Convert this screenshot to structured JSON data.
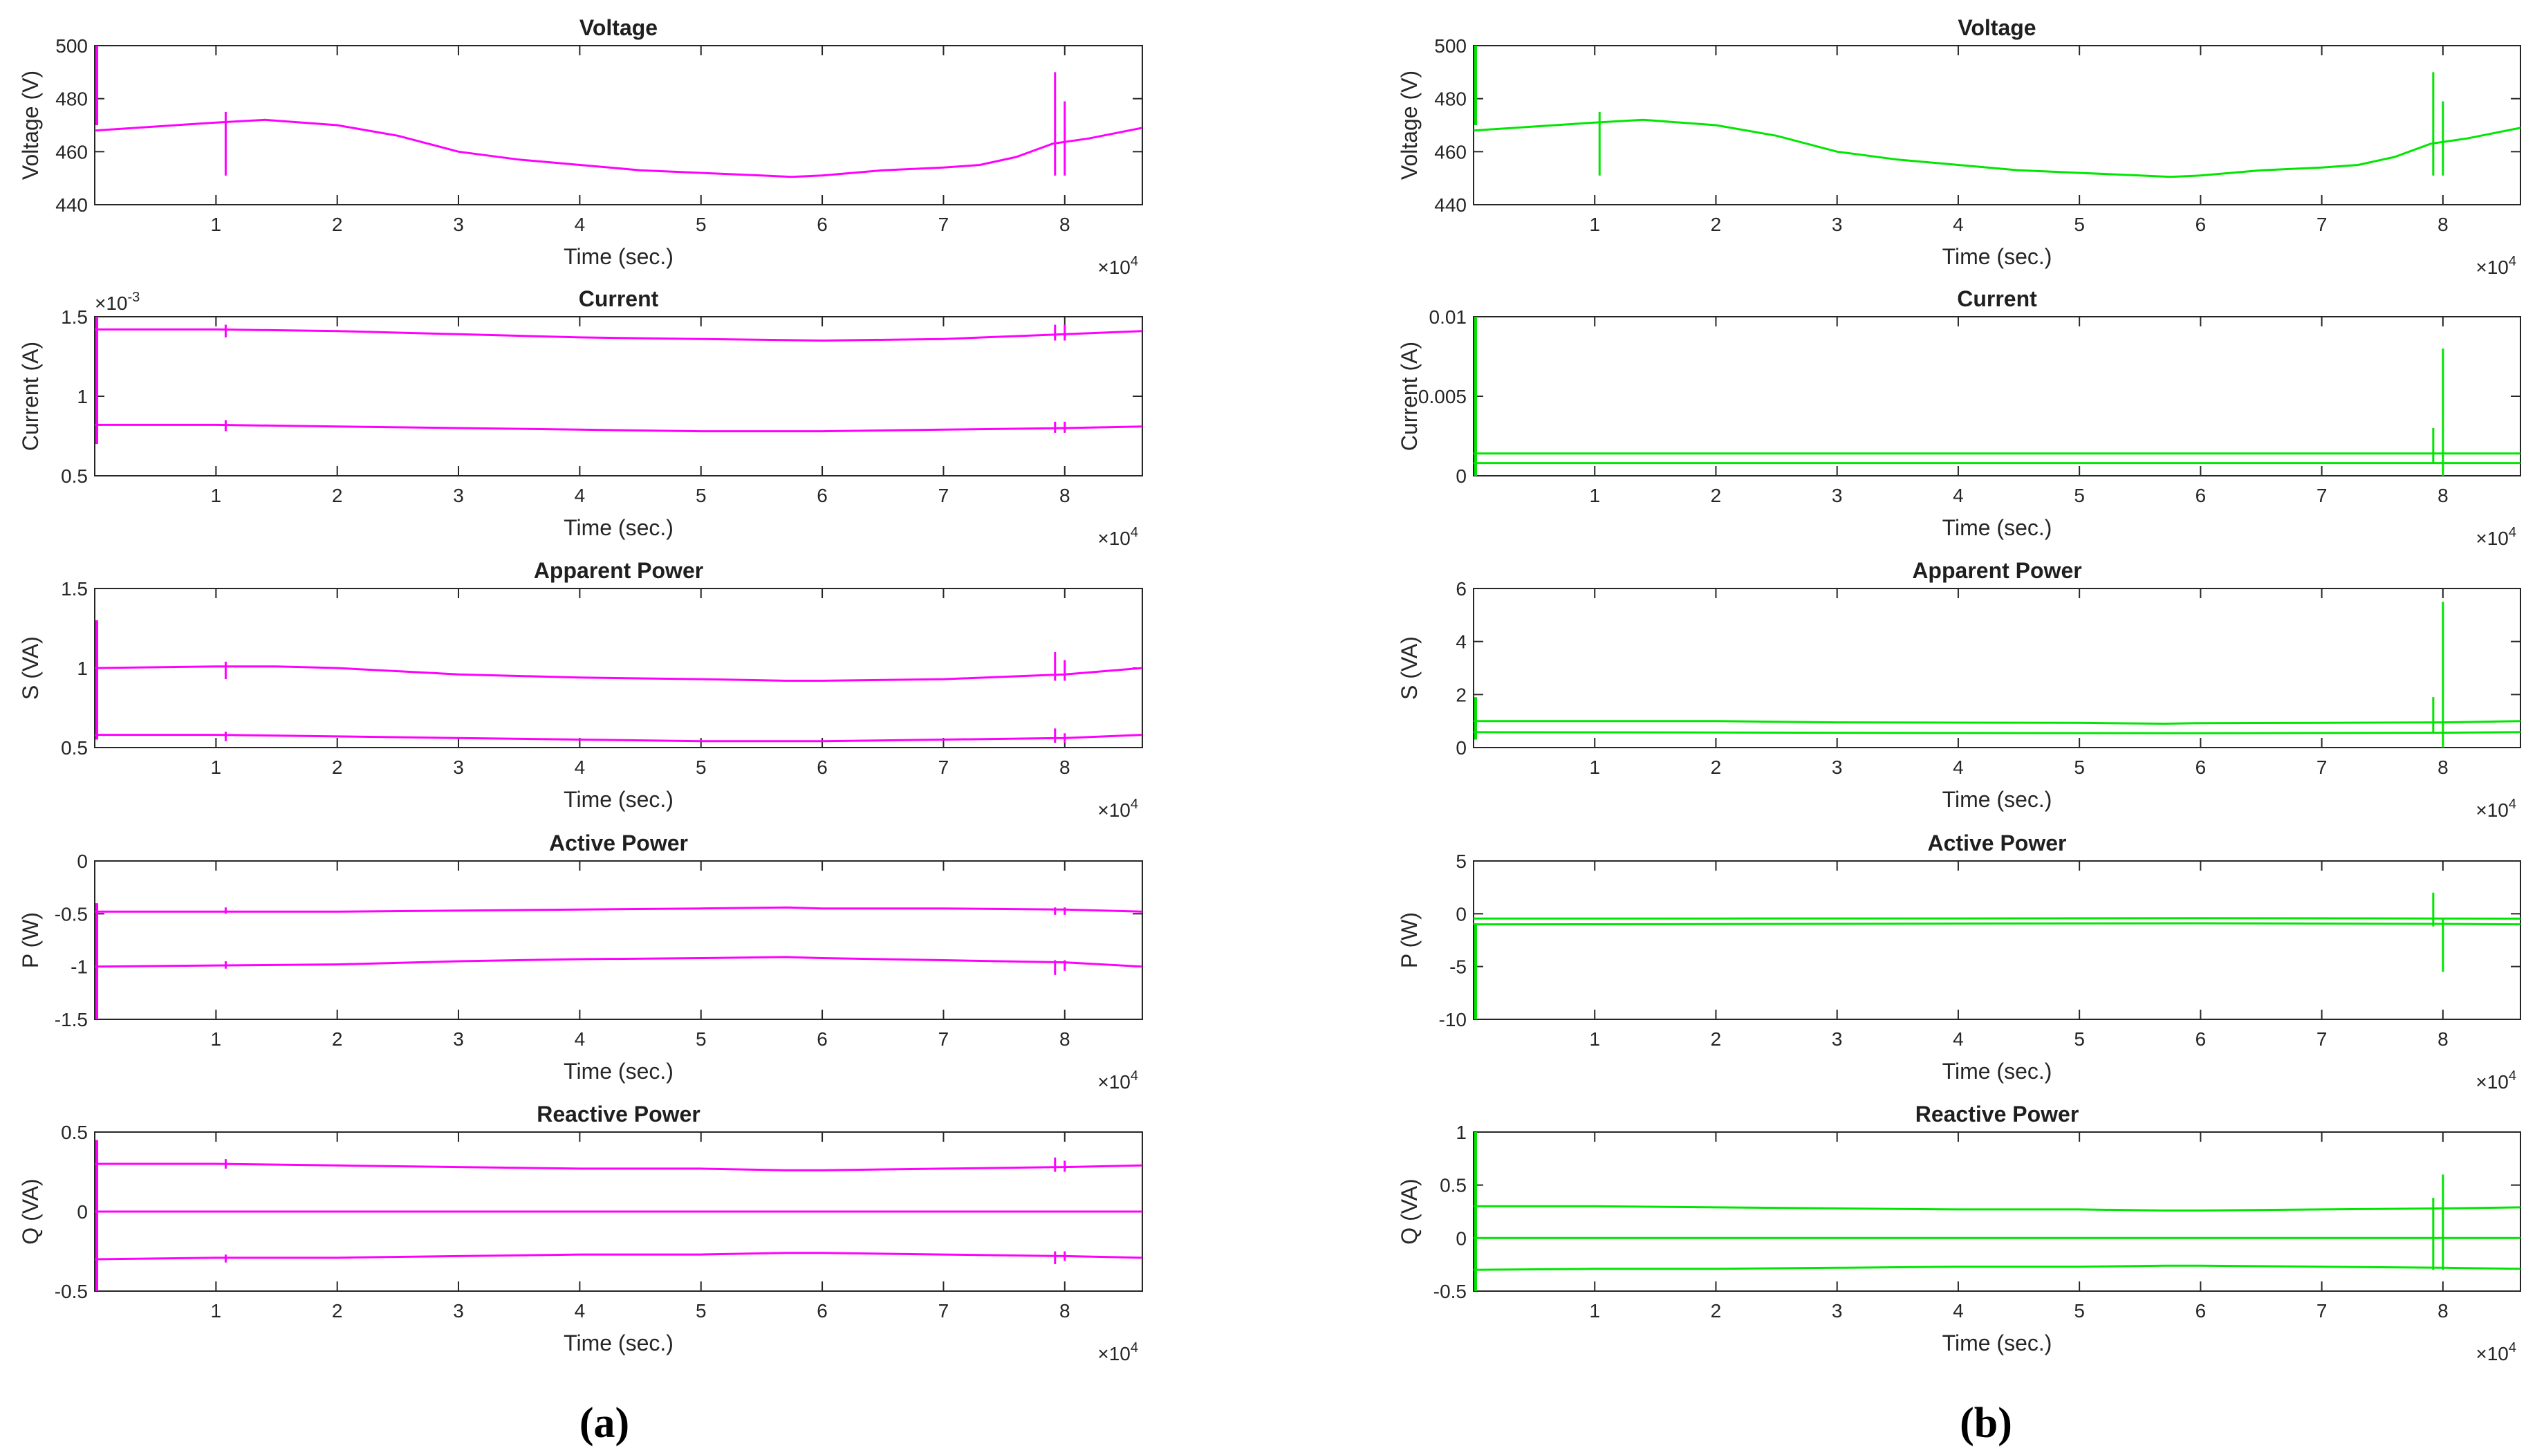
{
  "figure": {
    "captions": [
      {
        "id": "a",
        "label": "(a)"
      },
      {
        "id": "b",
        "label": "(b)"
      }
    ]
  },
  "chart_data": [
    {
      "type": "line",
      "column": "a",
      "row": 0,
      "color": "#ff00ff",
      "title": "Voltage",
      "xlabel": "Time (sec.)",
      "ylabel": "Voltage (V)",
      "xlim": [
        0,
        8.64
      ],
      "xticks": [
        1,
        2,
        3,
        4,
        5,
        6,
        7,
        8
      ],
      "x_multiplier": {
        "base": "×10",
        "exp": "4"
      },
      "ylim": [
        440,
        500
      ],
      "yticks": [
        440,
        460,
        480,
        500
      ],
      "ytick_labels": [
        "440",
        "460",
        "480",
        "500"
      ],
      "y_multiplier": null,
      "series": [
        {
          "name": "voltage",
          "x": [
            0,
            1.0,
            1.4,
            2.0,
            2.5,
            3.0,
            3.5,
            4.0,
            4.5,
            5.0,
            5.5,
            5.75,
            6.0,
            6.5,
            7.0,
            7.3,
            7.6,
            7.9,
            8.2,
            8.64
          ],
          "y": [
            468,
            471,
            472,
            470,
            466,
            460,
            457,
            455,
            453,
            452,
            451,
            450.5,
            451,
            453,
            454,
            455,
            458,
            463,
            465,
            469
          ]
        }
      ],
      "spikes": [
        {
          "x": 1.08,
          "y1": 451,
          "y2": 475
        },
        {
          "x": 7.92,
          "y1": 451,
          "y2": 490
        },
        {
          "x": 8.0,
          "y1": 451,
          "y2": 479
        }
      ],
      "left_edge_spike": {
        "y1": 470,
        "y2": 500
      }
    },
    {
      "type": "line",
      "column": "a",
      "row": 1,
      "color": "#ff00ff",
      "title": "Current",
      "xlabel": "Time (sec.)",
      "ylabel": "Current (A)",
      "xlim": [
        0,
        8.64
      ],
      "xticks": [
        1,
        2,
        3,
        4,
        5,
        6,
        7,
        8
      ],
      "x_multiplier": {
        "base": "×10",
        "exp": "4"
      },
      "ylim": [
        0.5,
        1.5
      ],
      "yticks": [
        0.5,
        1,
        1.5
      ],
      "ytick_labels": [
        "0.5",
        "1",
        "1.5"
      ],
      "y_multiplier": {
        "base": "×10",
        "exp": "-3"
      },
      "series": [
        {
          "name": "upper",
          "x": [
            0,
            1,
            2,
            3,
            4,
            5,
            6,
            7,
            8,
            8.64
          ],
          "y": [
            1.42,
            1.42,
            1.41,
            1.39,
            1.37,
            1.36,
            1.35,
            1.36,
            1.39,
            1.41
          ]
        },
        {
          "name": "lower",
          "x": [
            0,
            1,
            2,
            3,
            4,
            5,
            6,
            7,
            8,
            8.64
          ],
          "y": [
            0.82,
            0.82,
            0.81,
            0.8,
            0.79,
            0.78,
            0.78,
            0.79,
            0.8,
            0.81
          ]
        }
      ],
      "spikes": [
        {
          "x": 1.08,
          "y1": 1.37,
          "y2": 1.45
        },
        {
          "x": 1.08,
          "y1": 0.78,
          "y2": 0.85
        },
        {
          "x": 7.92,
          "y1": 1.35,
          "y2": 1.45
        },
        {
          "x": 8.0,
          "y1": 1.35,
          "y2": 1.45
        },
        {
          "x": 7.92,
          "y1": 0.77,
          "y2": 0.84
        },
        {
          "x": 8.0,
          "y1": 0.77,
          "y2": 0.84
        }
      ],
      "left_edge_spike": {
        "y1": 0.7,
        "y2": 1.5
      }
    },
    {
      "type": "line",
      "column": "a",
      "row": 2,
      "color": "#ff00ff",
      "title": "Apparent Power",
      "xlabel": "Time (sec.)",
      "ylabel": "S (VA)",
      "xlim": [
        0,
        8.64
      ],
      "xticks": [
        1,
        2,
        3,
        4,
        5,
        6,
        7,
        8
      ],
      "x_multiplier": {
        "base": "×10",
        "exp": "4"
      },
      "ylim": [
        0.5,
        1.5
      ],
      "yticks": [
        0.5,
        1,
        1.5
      ],
      "ytick_labels": [
        "0.5",
        "1",
        "1.5"
      ],
      "y_multiplier": null,
      "series": [
        {
          "name": "upper",
          "x": [
            0,
            1,
            1.5,
            2,
            3,
            4,
            5,
            5.7,
            6,
            7,
            8,
            8.64
          ],
          "y": [
            1.0,
            1.01,
            1.01,
            1.0,
            0.96,
            0.94,
            0.93,
            0.92,
            0.92,
            0.93,
            0.96,
            1.0
          ]
        },
        {
          "name": "lower",
          "x": [
            0,
            1,
            2,
            3,
            4,
            5,
            6,
            7,
            8,
            8.64
          ],
          "y": [
            0.58,
            0.58,
            0.57,
            0.56,
            0.55,
            0.54,
            0.54,
            0.55,
            0.56,
            0.58
          ]
        }
      ],
      "spikes": [
        {
          "x": 1.08,
          "y1": 0.93,
          "y2": 1.04
        },
        {
          "x": 1.08,
          "y1": 0.54,
          "y2": 0.6
        },
        {
          "x": 7.92,
          "y1": 0.92,
          "y2": 1.1
        },
        {
          "x": 8.0,
          "y1": 0.92,
          "y2": 1.05
        },
        {
          "x": 7.92,
          "y1": 0.53,
          "y2": 0.62
        },
        {
          "x": 8.0,
          "y1": 0.53,
          "y2": 0.59
        }
      ],
      "left_edge_spike": {
        "y1": 0.55,
        "y2": 1.3
      }
    },
    {
      "type": "line",
      "column": "a",
      "row": 3,
      "color": "#ff00ff",
      "title": "Active Power",
      "xlabel": "Time (sec.)",
      "ylabel": "P (W)",
      "xlim": [
        0,
        8.64
      ],
      "xticks": [
        1,
        2,
        3,
        4,
        5,
        6,
        7,
        8
      ],
      "x_multiplier": {
        "base": "×10",
        "exp": "4"
      },
      "ylim": [
        -1.5,
        0
      ],
      "yticks": [
        -1.5,
        -1,
        -0.5,
        0
      ],
      "ytick_labels": [
        "-1.5",
        "-1",
        "-0.5",
        "0"
      ],
      "y_multiplier": null,
      "series": [
        {
          "name": "upper",
          "x": [
            0,
            1,
            2,
            3,
            4,
            5,
            5.7,
            6,
            7,
            8,
            8.64
          ],
          "y": [
            -0.48,
            -0.48,
            -0.48,
            -0.47,
            -0.46,
            -0.45,
            -0.44,
            -0.45,
            -0.45,
            -0.46,
            -0.48
          ]
        },
        {
          "name": "lower",
          "x": [
            0,
            1,
            2,
            3,
            4,
            5,
            5.7,
            6,
            7,
            8,
            8.64
          ],
          "y": [
            -1.0,
            -0.99,
            -0.98,
            -0.95,
            -0.93,
            -0.92,
            -0.91,
            -0.92,
            -0.94,
            -0.96,
            -1.0
          ]
        }
      ],
      "spikes": [
        {
          "x": 1.08,
          "y1": -0.5,
          "y2": -0.44
        },
        {
          "x": 1.08,
          "y1": -1.02,
          "y2": -0.95
        },
        {
          "x": 7.92,
          "y1": -0.51,
          "y2": -0.44
        },
        {
          "x": 8.0,
          "y1": -0.51,
          "y2": -0.44
        },
        {
          "x": 7.92,
          "y1": -1.08,
          "y2": -0.94
        },
        {
          "x": 8.0,
          "y1": -1.04,
          "y2": -0.94
        }
      ],
      "left_edge_spike": {
        "y1": -1.5,
        "y2": -0.4
      }
    },
    {
      "type": "line",
      "column": "a",
      "row": 4,
      "color": "#ff00ff",
      "title": "Reactive Power",
      "xlabel": "Time (sec.)",
      "ylabel": "Q (VA)",
      "xlim": [
        0,
        8.64
      ],
      "xticks": [
        1,
        2,
        3,
        4,
        5,
        6,
        7,
        8
      ],
      "x_multiplier": {
        "base": "×10",
        "exp": "4"
      },
      "ylim": [
        -0.5,
        0.5
      ],
      "yticks": [
        -0.5,
        0,
        0.5
      ],
      "ytick_labels": [
        "-0.5",
        "0",
        "0.5"
      ],
      "y_multiplier": null,
      "series": [
        {
          "name": "upper",
          "x": [
            0,
            1,
            2,
            3,
            4,
            5,
            5.7,
            6,
            7,
            8,
            8.64
          ],
          "y": [
            0.3,
            0.3,
            0.29,
            0.28,
            0.27,
            0.27,
            0.26,
            0.26,
            0.27,
            0.28,
            0.29
          ]
        },
        {
          "name": "zero",
          "x": [
            0,
            8.64
          ],
          "y": [
            0,
            0
          ]
        },
        {
          "name": "lower",
          "x": [
            0,
            1,
            2,
            3,
            4,
            5,
            5.7,
            6,
            7,
            8,
            8.64
          ],
          "y": [
            -0.3,
            -0.29,
            -0.29,
            -0.28,
            -0.27,
            -0.27,
            -0.26,
            -0.26,
            -0.27,
            -0.28,
            -0.29
          ]
        }
      ],
      "spikes": [
        {
          "x": 1.08,
          "y1": 0.27,
          "y2": 0.33
        },
        {
          "x": 1.08,
          "y1": -0.32,
          "y2": -0.27
        },
        {
          "x": 7.92,
          "y1": 0.25,
          "y2": 0.34
        },
        {
          "x": 8.0,
          "y1": 0.25,
          "y2": 0.32
        },
        {
          "x": 7.92,
          "y1": -0.33,
          "y2": -0.25
        },
        {
          "x": 8.0,
          "y1": -0.31,
          "y2": -0.25
        }
      ],
      "left_edge_spike": {
        "y1": -0.5,
        "y2": 0.45
      }
    },
    {
      "type": "line",
      "column": "b",
      "row": 0,
      "color": "#00e600",
      "title": "Voltage",
      "xlabel": "Time (sec.)",
      "ylabel": "Voltage (V)",
      "xlim": [
        0,
        8.64
      ],
      "xticks": [
        1,
        2,
        3,
        4,
        5,
        6,
        7,
        8
      ],
      "x_multiplier": {
        "base": "×10",
        "exp": "4"
      },
      "ylim": [
        440,
        500
      ],
      "yticks": [
        440,
        460,
        480,
        500
      ],
      "ytick_labels": [
        "440",
        "460",
        "480",
        "500"
      ],
      "y_multiplier": null,
      "series": [
        {
          "name": "voltage",
          "x": [
            0,
            1.0,
            1.4,
            2.0,
            2.5,
            3.0,
            3.5,
            4.0,
            4.5,
            5.0,
            5.5,
            5.75,
            6.0,
            6.5,
            7.0,
            7.3,
            7.6,
            7.9,
            8.2,
            8.64
          ],
          "y": [
            468,
            471,
            472,
            470,
            466,
            460,
            457,
            455,
            453,
            452,
            451,
            450.5,
            451,
            453,
            454,
            455,
            458,
            463,
            465,
            469
          ]
        }
      ],
      "spikes": [
        {
          "x": 1.04,
          "y1": 451,
          "y2": 475
        },
        {
          "x": 7.92,
          "y1": 451,
          "y2": 490
        },
        {
          "x": 8.0,
          "y1": 451,
          "y2": 479
        }
      ],
      "left_edge_spike": {
        "y1": 470,
        "y2": 500
      }
    },
    {
      "type": "line",
      "column": "b",
      "row": 1,
      "color": "#00e600",
      "title": "Current",
      "xlabel": "Time (sec.)",
      "ylabel": "Current (A)",
      "xlim": [
        0,
        8.64
      ],
      "xticks": [
        1,
        2,
        3,
        4,
        5,
        6,
        7,
        8
      ],
      "x_multiplier": {
        "base": "×10",
        "exp": "4"
      },
      "ylim": [
        0,
        0.01
      ],
      "yticks": [
        0,
        0.005,
        0.01
      ],
      "ytick_labels": [
        "0",
        "0.005",
        "0.01"
      ],
      "y_multiplier": null,
      "series": [
        {
          "name": "upper",
          "x": [
            0,
            2,
            4,
            6,
            8,
            8.64
          ],
          "y": [
            0.0014,
            0.0014,
            0.0014,
            0.0014,
            0.0014,
            0.0014
          ]
        },
        {
          "name": "lower",
          "x": [
            0,
            2,
            4,
            6,
            8,
            8.64
          ],
          "y": [
            0.0008,
            0.0008,
            0.0008,
            0.0008,
            0.0008,
            0.0008
          ]
        }
      ],
      "spikes": [
        {
          "x": 7.92,
          "y1": 0.0008,
          "y2": 0.003
        },
        {
          "x": 8.0,
          "y1": 0.0,
          "y2": 0.008
        }
      ],
      "left_edge_spike": {
        "y1": 0.0,
        "y2": 0.01
      }
    },
    {
      "type": "line",
      "column": "b",
      "row": 2,
      "color": "#00e600",
      "title": "Apparent Power",
      "xlabel": "Time (sec.)",
      "ylabel": "S (VA)",
      "xlim": [
        0,
        8.64
      ],
      "xticks": [
        1,
        2,
        3,
        4,
        5,
        6,
        7,
        8
      ],
      "x_multiplier": {
        "base": "×10",
        "exp": "4"
      },
      "ylim": [
        0,
        6
      ],
      "yticks": [
        0,
        2,
        4,
        6
      ],
      "ytick_labels": [
        "0",
        "2",
        "4",
        "6"
      ],
      "y_multiplier": null,
      "series": [
        {
          "name": "upper",
          "x": [
            0,
            2,
            3,
            4,
            5,
            5.7,
            6,
            7,
            8,
            8.64
          ],
          "y": [
            1.0,
            1.0,
            0.95,
            0.94,
            0.93,
            0.9,
            0.92,
            0.93,
            0.95,
            1.0
          ]
        },
        {
          "name": "lower",
          "x": [
            0,
            2,
            4,
            6,
            8,
            8.64
          ],
          "y": [
            0.58,
            0.57,
            0.55,
            0.54,
            0.56,
            0.58
          ]
        }
      ],
      "spikes": [
        {
          "x": 7.92,
          "y1": 0.6,
          "y2": 1.9
        },
        {
          "x": 8.0,
          "y1": 0.0,
          "y2": 5.5
        }
      ],
      "left_edge_spike": {
        "y1": 0.3,
        "y2": 1.9
      }
    },
    {
      "type": "line",
      "column": "b",
      "row": 3,
      "color": "#00e600",
      "title": "Active Power",
      "xlabel": "Time (sec.)",
      "ylabel": "P (W)",
      "xlim": [
        0,
        8.64
      ],
      "xticks": [
        1,
        2,
        3,
        4,
        5,
        6,
        7,
        8
      ],
      "x_multiplier": {
        "base": "×10",
        "exp": "4"
      },
      "ylim": [
        -10,
        5
      ],
      "yticks": [
        -10,
        -5,
        0,
        5
      ],
      "ytick_labels": [
        "-10",
        "-5",
        "0",
        "5"
      ],
      "y_multiplier": null,
      "series": [
        {
          "name": "upper",
          "x": [
            0,
            2,
            4,
            6,
            8,
            8.64
          ],
          "y": [
            -0.45,
            -0.45,
            -0.44,
            -0.42,
            -0.45,
            -0.46
          ]
        },
        {
          "name": "lower",
          "x": [
            0,
            2,
            4,
            6,
            8,
            8.64
          ],
          "y": [
            -1.0,
            -0.98,
            -0.93,
            -0.9,
            -0.96,
            -1.0
          ]
        }
      ],
      "spikes": [
        {
          "x": 7.92,
          "y1": -1.2,
          "y2": 2.0
        },
        {
          "x": 8.0,
          "y1": -5.5,
          "y2": -0.4
        }
      ],
      "left_edge_spike": {
        "y1": -10,
        "y2": -1.0
      }
    },
    {
      "type": "line",
      "column": "b",
      "row": 4,
      "color": "#00e600",
      "title": "Reactive Power",
      "xlabel": "Time (sec.)",
      "ylabel": "Q (VA)",
      "xlim": [
        0,
        8.64
      ],
      "xticks": [
        1,
        2,
        3,
        4,
        5,
        6,
        7,
        8
      ],
      "x_multiplier": {
        "base": "×10",
        "exp": "4"
      },
      "ylim": [
        -0.5,
        1
      ],
      "yticks": [
        -0.5,
        0,
        0.5,
        1
      ],
      "ytick_labels": [
        "-0.5",
        "0",
        "0.5",
        "1"
      ],
      "y_multiplier": null,
      "series": [
        {
          "name": "upper",
          "x": [
            0,
            1,
            2,
            3,
            4,
            5,
            5.7,
            6,
            7,
            8,
            8.64
          ],
          "y": [
            0.3,
            0.3,
            0.29,
            0.28,
            0.27,
            0.27,
            0.26,
            0.26,
            0.27,
            0.28,
            0.29
          ]
        },
        {
          "name": "zero",
          "x": [
            0,
            8.64
          ],
          "y": [
            0,
            0
          ]
        },
        {
          "name": "lower",
          "x": [
            0,
            1,
            2,
            3,
            4,
            5,
            5.7,
            6,
            7,
            8,
            8.64
          ],
          "y": [
            -0.3,
            -0.29,
            -0.29,
            -0.28,
            -0.27,
            -0.27,
            -0.26,
            -0.26,
            -0.27,
            -0.28,
            -0.29
          ]
        }
      ],
      "spikes": [
        {
          "x": 7.92,
          "y1": -0.3,
          "y2": 0.38
        },
        {
          "x": 8.0,
          "y1": -0.3,
          "y2": 0.6
        }
      ],
      "left_edge_spike": {
        "y1": -0.5,
        "y2": 1.0
      }
    }
  ]
}
